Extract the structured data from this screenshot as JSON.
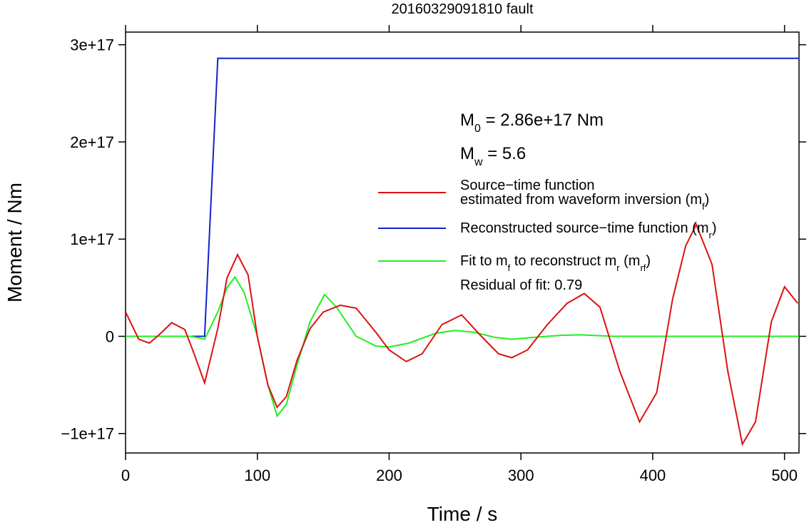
{
  "chart_data": {
    "type": "line",
    "title": "20160329091810 fault",
    "xlabel": "Time / s",
    "ylabel": "Moment / Nm",
    "xlim": [
      0,
      511
    ],
    "ylim": [
      -1.2e+17,
      3.13e+17
    ],
    "xticks": [
      0,
      100,
      200,
      300,
      400,
      500
    ],
    "yticks": [
      {
        "value": -1e+17,
        "label": "−1e+17"
      },
      {
        "value": 0,
        "label": "0"
      },
      {
        "value": 1e+17,
        "label": "1e+17"
      },
      {
        "value": 2e+17,
        "label": "2e+17"
      },
      {
        "value": 3e+17,
        "label": "3e+17"
      }
    ],
    "annotations": [
      [
        {
          "text": "M"
        },
        {
          "text": "0",
          "sub": true
        },
        {
          "text": " = 2.86e+17 Nm"
        }
      ],
      [
        {
          "text": "M"
        },
        {
          "text": "w",
          "sub": true
        },
        {
          "text": " = 5.6"
        }
      ],
      [
        {
          "text": "Residual of fit: 0.79"
        }
      ]
    ],
    "series": [
      {
        "name": [
          [
            {
              "text": "Source−time function"
            }
          ],
          [
            {
              "text": "estimated from waveform inversion (m"
            },
            {
              "text": "f",
              "sub": true
            },
            {
              "text": ")"
            }
          ]
        ],
        "color": "#dd1111",
        "x": [
          0,
          10,
          18,
          25,
          35,
          45,
          52,
          60,
          70,
          77,
          85,
          93,
          100,
          108,
          115,
          122,
          130,
          140,
          150,
          163,
          175,
          190,
          200,
          213,
          225,
          240,
          255,
          270,
          283,
          293,
          305,
          320,
          335,
          348,
          360,
          375,
          390,
          403,
          415,
          425,
          433,
          445,
          457,
          468,
          478,
          490,
          500,
          510
        ],
        "values": [
          2.5e+16,
          -3000000000000000.0,
          -7000000000000000.0,
          1000000000000000.0,
          1.4e+16,
          7000000000000000.0,
          -1.8e+16,
          -4.8e+16,
          8000000000000000.0,
          6e+16,
          8.4e+16,
          6.3e+16,
          0,
          -5e+16,
          -7.3e+16,
          -6.2e+16,
          -2.5e+16,
          8000000000000000.0,
          2.5e+16,
          3.2e+16,
          2.9e+16,
          4000000000000000.0,
          -1.4e+16,
          -2.6e+16,
          -1.8e+16,
          1.2e+16,
          2.2e+16,
          0,
          -1.8e+16,
          -2.2e+16,
          -1.4e+16,
          1.2e+16,
          3.4e+16,
          4.4e+16,
          3e+16,
          -3.6e+16,
          -8.8e+16,
          -5.8e+16,
          3.8e+16,
          9.3e+16,
          1.15e+17,
          7.4e+16,
          -3.6e+16,
          -1.11e+17,
          -8.8e+16,
          1.5e+16,
          5.1e+16,
          3.4e+16
        ]
      },
      {
        "name": [
          [
            {
              "text": "Reconstructed source−time function (m"
            },
            {
              "text": "r",
              "sub": true
            },
            {
              "text": ")"
            }
          ]
        ],
        "color": "#1122cc",
        "x": [
          0,
          60,
          70,
          511
        ],
        "values": [
          0,
          0,
          2.86e+17,
          2.86e+17
        ]
      },
      {
        "name": [
          [
            {
              "text": "Fit to m"
            },
            {
              "text": "f",
              "sub": true
            },
            {
              "text": " to reconstruct m"
            },
            {
              "text": "r",
              "sub": true
            },
            {
              "text": " (m"
            },
            {
              "text": "rf",
              "sub": true
            },
            {
              "text": ")"
            }
          ]
        ],
        "color": "#22ee22",
        "x": [
          0,
          40,
          50,
          60,
          70,
          77,
          83,
          90,
          100,
          108,
          115,
          122,
          130,
          140,
          151,
          160,
          175,
          190,
          200,
          215,
          235,
          250,
          265,
          280,
          293,
          310,
          330,
          345,
          370,
          400,
          511
        ],
        "values": [
          0,
          0,
          0,
          -3000000000000000.0,
          2.5e+16,
          5e+16,
          6.1e+16,
          4.5e+16,
          0,
          -5e+16,
          -8.2e+16,
          -7e+16,
          -3e+16,
          1.5e+16,
          4.3e+16,
          3e+16,
          0,
          -1e+16,
          -1.1e+16,
          -7000000000000000.0,
          3000000000000000.0,
          6000000000000000.0,
          4000000000000000.0,
          -1000000000000000.0,
          -3000000000000000.0,
          -1000000000000000.0,
          1000000000000000.0,
          1500000000000000.0,
          0,
          0,
          0
        ]
      }
    ]
  }
}
